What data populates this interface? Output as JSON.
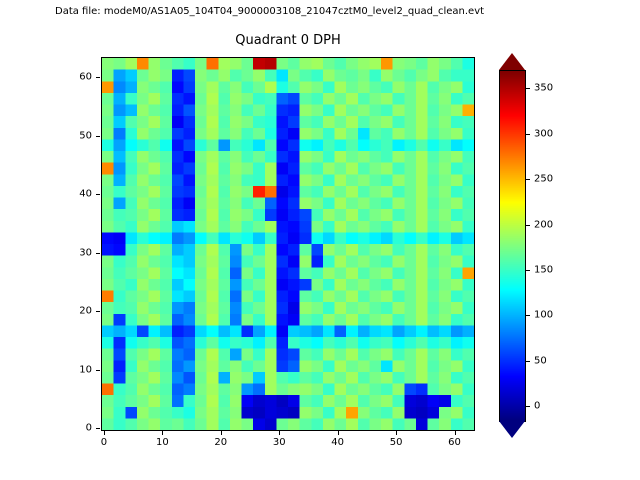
{
  "header": {
    "data_file_label": "Data file: modeM0/AS1A05_104T04_9000003108_21047cztM0_level2_quad_clean.evt"
  },
  "chart_data": {
    "type": "heatmap",
    "title": "Quadrant 0 DPH",
    "x_ticks": [
      0,
      10,
      20,
      30,
      40,
      50,
      60
    ],
    "y_ticks": [
      0,
      10,
      20,
      30,
      40,
      50,
      60
    ],
    "x_range": [
      -0.5,
      63.5
    ],
    "y_range": [
      -0.5,
      63.5
    ],
    "colormap": "jet",
    "colorbar": {
      "ticks": [
        0,
        50,
        100,
        150,
        200,
        250,
        300,
        350
      ],
      "vmin": -15,
      "vmax": 370,
      "extend": "both",
      "min_color": "#00007f",
      "max_color": "#7f0000"
    },
    "values_orientation": "rows_top_to_bottom",
    "values": [
      [
        180,
        175,
        190,
        270,
        185,
        170,
        160,
        150,
        175,
        280,
        190,
        185,
        170,
        345,
        350,
        175,
        165,
        185,
        190,
        170,
        160,
        175,
        185,
        190,
        265,
        180,
        175,
        165,
        185,
        175,
        160,
        140
      ],
      [
        175,
        95,
        110,
        170,
        185,
        175,
        45,
        60,
        180,
        170,
        185,
        160,
        170,
        185,
        155,
        120,
        175,
        160,
        150,
        185,
        170,
        165,
        175,
        150,
        185,
        170,
        160,
        175,
        185,
        160,
        150,
        150
      ],
      [
        265,
        85,
        100,
        180,
        170,
        160,
        35,
        55,
        175,
        190,
        165,
        180,
        155,
        170,
        195,
        140,
        160,
        185,
        175,
        150,
        190,
        170,
        180,
        165,
        155,
        185,
        170,
        190,
        160,
        175,
        185,
        145
      ],
      [
        170,
        100,
        150,
        175,
        190,
        165,
        50,
        40,
        170,
        195,
        160,
        185,
        175,
        150,
        155,
        70,
        60,
        165,
        155,
        185,
        170,
        190,
        160,
        175,
        185,
        155,
        170,
        190,
        165,
        180,
        150,
        160
      ],
      [
        175,
        90,
        105,
        185,
        170,
        160,
        45,
        65,
        175,
        190,
        165,
        180,
        155,
        170,
        150,
        50,
        45,
        185,
        175,
        150,
        190,
        170,
        180,
        165,
        155,
        185,
        170,
        190,
        160,
        175,
        185,
        255
      ],
      [
        170,
        110,
        160,
        175,
        190,
        165,
        30,
        50,
        170,
        195,
        160,
        185,
        175,
        150,
        145,
        40,
        55,
        165,
        155,
        185,
        170,
        190,
        160,
        175,
        185,
        155,
        170,
        190,
        165,
        180,
        150,
        155
      ],
      [
        175,
        80,
        145,
        185,
        170,
        160,
        55,
        45,
        175,
        190,
        165,
        180,
        155,
        170,
        140,
        45,
        30,
        185,
        175,
        150,
        190,
        170,
        120,
        165,
        155,
        185,
        170,
        190,
        160,
        175,
        185,
        150
      ],
      [
        140,
        95,
        130,
        145,
        160,
        135,
        40,
        60,
        145,
        165,
        90,
        155,
        145,
        120,
        160,
        35,
        50,
        135,
        125,
        155,
        140,
        160,
        130,
        145,
        155,
        125,
        140,
        160,
        135,
        150,
        120,
        130
      ],
      [
        175,
        105,
        155,
        185,
        170,
        160,
        50,
        35,
        175,
        190,
        165,
        180,
        155,
        170,
        150,
        50,
        40,
        185,
        175,
        150,
        190,
        170,
        180,
        165,
        155,
        185,
        170,
        190,
        160,
        175,
        185,
        155
      ],
      [
        270,
        90,
        150,
        175,
        190,
        165,
        45,
        55,
        170,
        195,
        160,
        185,
        175,
        150,
        190,
        30,
        45,
        165,
        155,
        185,
        170,
        190,
        160,
        175,
        185,
        155,
        170,
        190,
        165,
        180,
        150,
        160
      ],
      [
        175,
        100,
        160,
        185,
        170,
        160,
        60,
        40,
        175,
        190,
        165,
        180,
        155,
        150,
        190,
        45,
        35,
        185,
        175,
        150,
        190,
        170,
        180,
        165,
        155,
        185,
        170,
        190,
        160,
        175,
        185,
        150
      ],
      [
        170,
        150,
        165,
        175,
        190,
        165,
        55,
        50,
        170,
        195,
        160,
        185,
        175,
        310,
        280,
        25,
        40,
        165,
        155,
        185,
        170,
        190,
        160,
        175,
        185,
        155,
        170,
        190,
        165,
        180,
        150,
        160
      ],
      [
        175,
        95,
        155,
        185,
        170,
        160,
        45,
        30,
        175,
        190,
        165,
        180,
        155,
        170,
        70,
        35,
        50,
        185,
        175,
        150,
        190,
        170,
        180,
        165,
        155,
        185,
        170,
        190,
        160,
        175,
        185,
        155
      ],
      [
        170,
        155,
        160,
        175,
        190,
        165,
        50,
        45,
        170,
        195,
        160,
        185,
        175,
        150,
        55,
        30,
        45,
        60,
        155,
        185,
        170,
        190,
        160,
        175,
        185,
        155,
        170,
        190,
        165,
        180,
        150,
        160
      ],
      [
        175,
        160,
        150,
        185,
        170,
        160,
        110,
        120,
        175,
        190,
        165,
        180,
        155,
        170,
        190,
        40,
        35,
        55,
        175,
        150,
        190,
        170,
        180,
        165,
        155,
        185,
        170,
        190,
        160,
        175,
        185,
        150
      ],
      [
        35,
        30,
        120,
        145,
        130,
        125,
        80,
        90,
        130,
        155,
        120,
        145,
        135,
        110,
        150,
        45,
        30,
        50,
        135,
        115,
        150,
        130,
        140,
        125,
        115,
        145,
        130,
        150,
        125,
        140,
        110,
        120
      ],
      [
        40,
        35,
        150,
        175,
        190,
        165,
        100,
        110,
        170,
        195,
        160,
        90,
        175,
        150,
        190,
        35,
        45,
        165,
        60,
        185,
        170,
        190,
        160,
        175,
        185,
        155,
        170,
        190,
        165,
        180,
        150,
        160
      ],
      [
        175,
        150,
        160,
        185,
        170,
        160,
        120,
        110,
        175,
        190,
        165,
        85,
        155,
        170,
        190,
        50,
        30,
        185,
        45,
        150,
        190,
        170,
        180,
        165,
        155,
        185,
        170,
        190,
        160,
        175,
        185,
        150
      ],
      [
        170,
        155,
        165,
        175,
        190,
        165,
        130,
        120,
        170,
        195,
        160,
        70,
        175,
        150,
        190,
        40,
        50,
        165,
        155,
        185,
        170,
        190,
        160,
        175,
        185,
        155,
        170,
        190,
        165,
        180,
        150,
        260
      ],
      [
        175,
        160,
        150,
        185,
        170,
        160,
        110,
        130,
        175,
        190,
        165,
        90,
        155,
        170,
        190,
        30,
        40,
        55,
        175,
        150,
        190,
        170,
        180,
        165,
        155,
        185,
        170,
        190,
        160,
        175,
        185,
        150
      ],
      [
        275,
        150,
        165,
        175,
        190,
        165,
        120,
        110,
        170,
        195,
        160,
        75,
        175,
        150,
        190,
        45,
        35,
        165,
        155,
        185,
        170,
        190,
        160,
        175,
        185,
        155,
        170,
        190,
        165,
        180,
        150,
        160
      ],
      [
        170,
        155,
        160,
        185,
        170,
        160,
        90,
        80,
        175,
        190,
        165,
        85,
        155,
        170,
        190,
        50,
        25,
        185,
        175,
        150,
        190,
        170,
        180,
        165,
        155,
        185,
        170,
        190,
        160,
        175,
        185,
        150
      ],
      [
        175,
        55,
        150,
        175,
        190,
        165,
        70,
        85,
        170,
        195,
        160,
        80,
        175,
        150,
        190,
        40,
        30,
        165,
        155,
        185,
        170,
        190,
        160,
        175,
        185,
        155,
        170,
        190,
        165,
        180,
        150,
        160
      ],
      [
        110,
        100,
        115,
        60,
        125,
        105,
        45,
        55,
        115,
        130,
        105,
        120,
        50,
        95,
        125,
        30,
        110,
        105,
        95,
        120,
        70,
        125,
        100,
        115,
        120,
        95,
        110,
        125,
        105,
        115,
        90,
        100
      ],
      [
        140,
        50,
        135,
        150,
        160,
        140,
        65,
        75,
        145,
        165,
        135,
        150,
        145,
        125,
        160,
        45,
        150,
        140,
        130,
        155,
        145,
        160,
        135,
        150,
        155,
        130,
        145,
        160,
        140,
        150,
        125,
        135
      ],
      [
        170,
        60,
        160,
        175,
        190,
        165,
        80,
        70,
        170,
        195,
        160,
        95,
        175,
        150,
        190,
        50,
        60,
        165,
        155,
        185,
        170,
        190,
        160,
        175,
        185,
        155,
        170,
        190,
        165,
        180,
        150,
        160
      ],
      [
        175,
        45,
        150,
        185,
        170,
        160,
        75,
        90,
        175,
        190,
        165,
        180,
        155,
        170,
        190,
        55,
        70,
        185,
        175,
        150,
        190,
        170,
        180,
        165,
        120,
        185,
        170,
        190,
        160,
        175,
        185,
        150
      ],
      [
        170,
        55,
        165,
        175,
        190,
        165,
        85,
        65,
        170,
        195,
        100,
        185,
        175,
        110,
        190,
        160,
        150,
        165,
        155,
        185,
        170,
        190,
        160,
        175,
        185,
        155,
        170,
        190,
        165,
        180,
        150,
        160
      ],
      [
        280,
        150,
        160,
        185,
        170,
        160,
        70,
        80,
        175,
        190,
        165,
        180,
        90,
        75,
        190,
        170,
        180,
        185,
        175,
        150,
        190,
        170,
        180,
        165,
        155,
        185,
        60,
        50,
        160,
        175,
        185,
        150
      ],
      [
        170,
        155,
        165,
        175,
        190,
        165,
        75,
        150,
        170,
        195,
        160,
        185,
        30,
        15,
        20,
        10,
        25,
        165,
        155,
        185,
        170,
        190,
        160,
        175,
        185,
        155,
        20,
        15,
        30,
        25,
        150,
        160
      ],
      [
        175,
        150,
        60,
        185,
        170,
        160,
        150,
        140,
        175,
        190,
        165,
        180,
        15,
        10,
        20,
        15,
        10,
        185,
        175,
        150,
        190,
        260,
        180,
        165,
        155,
        185,
        15,
        10,
        20,
        175,
        185,
        150
      ],
      [
        165,
        150,
        160,
        175,
        185,
        165,
        170,
        155,
        170,
        190,
        160,
        185,
        175,
        25,
        15,
        170,
        180,
        165,
        155,
        185,
        170,
        190,
        160,
        175,
        185,
        155,
        170,
        20,
        165,
        180,
        150,
        160
      ]
    ]
  }
}
